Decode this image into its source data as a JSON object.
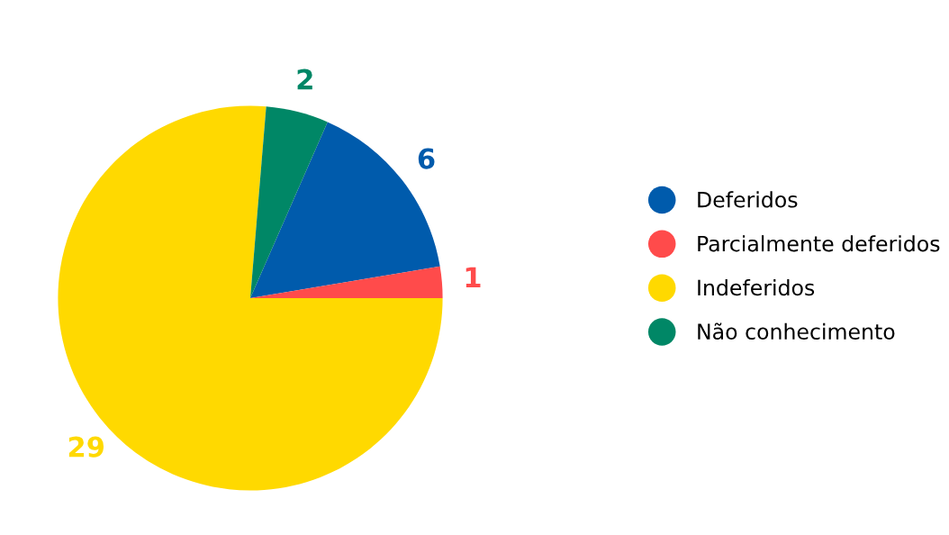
{
  "chart_data": {
    "type": "pie",
    "categories": [
      "Deferidos",
      "Parcialmente deferidos",
      "Indeferidos",
      "Não conhecimento"
    ],
    "values": [
      6,
      1,
      29,
      2
    ],
    "colors": [
      "#005bac",
      "#ff4b4b",
      "#ffd900",
      "#008766"
    ],
    "data_labels": true,
    "legend": "right"
  }
}
